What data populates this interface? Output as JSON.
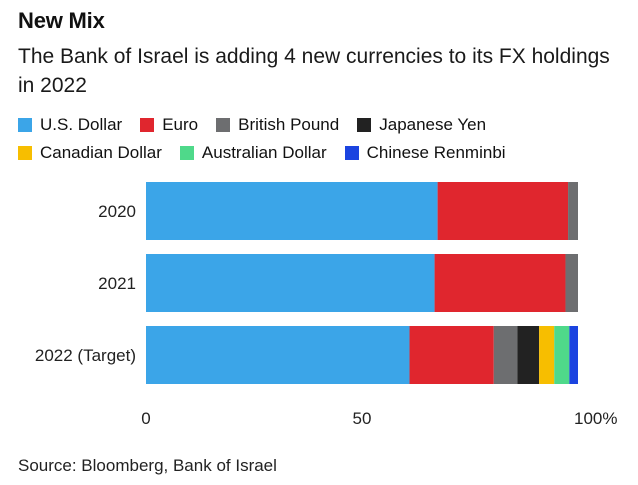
{
  "header": {
    "title": "New Mix",
    "subtitle": "The Bank of Israel is adding 4 new currencies to its FX holdings in 2022"
  },
  "footer": {
    "source": "Source: Bloomberg, Bank of Israel"
  },
  "chart_data": {
    "type": "bar",
    "orientation": "horizontal",
    "stacked": true,
    "title": "New Mix",
    "subtitle": "The Bank of Israel is adding 4 new currencies to its FX holdings in 2022",
    "categories": [
      "2020",
      "2021",
      "2022 (Target)"
    ],
    "xlim": [
      0,
      100
    ],
    "xticks": [
      "0",
      "50",
      "100%"
    ],
    "tick_values": [
      0,
      50,
      100
    ],
    "grid": false,
    "legend_position": "top",
    "series": [
      {
        "name": "U.S. Dollar",
        "color": "#3ba5e8",
        "values": [
          67.5,
          66.8,
          61.0
        ]
      },
      {
        "name": "Euro",
        "color": "#e0262e",
        "values": [
          30.2,
          30.3,
          19.5
        ]
      },
      {
        "name": "British Pound",
        "color": "#6d6e70",
        "values": [
          2.3,
          2.9,
          5.5
        ]
      },
      {
        "name": "Japanese Yen",
        "color": "#222222",
        "values": [
          0,
          0,
          5.0
        ]
      },
      {
        "name": "Canadian Dollar",
        "color": "#f7be00",
        "values": [
          0,
          0,
          3.5
        ]
      },
      {
        "name": "Australian Dollar",
        "color": "#4fd98a",
        "values": [
          0,
          0,
          3.5
        ]
      },
      {
        "name": "Chinese Renminbi",
        "color": "#1b44e0",
        "values": [
          0,
          0,
          2.0
        ]
      }
    ],
    "legend_rows": [
      [
        0,
        1,
        2,
        3
      ],
      [
        4,
        5,
        6
      ]
    ]
  }
}
